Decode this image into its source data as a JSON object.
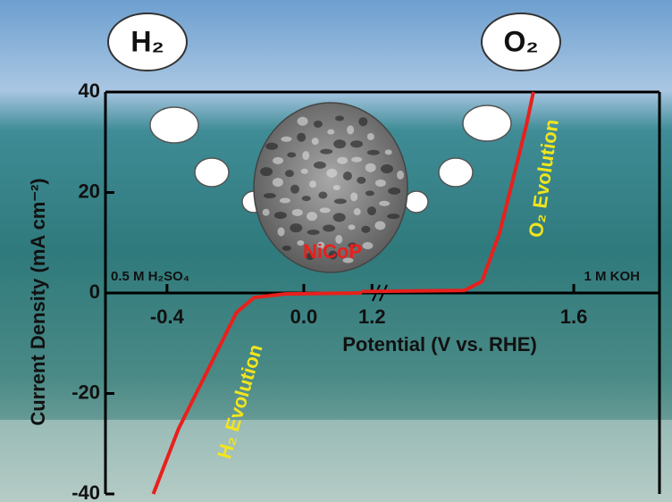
{
  "chart_data": [
    {
      "type": "line",
      "x_label": "Potential (V vs. RHE)",
      "y_label": "Current Density (mA cm⁻²)",
      "electrolyte": "0.5 M H₂SO₄",
      "product": "H₂",
      "annotation": "H₂ Evolution",
      "xlim": [
        -0.58,
        0.17
      ],
      "xticks": [
        -0.4,
        {
          "value": 0,
          "label": "0.0"
        }
      ],
      "ylim": [
        -40,
        40
      ],
      "yticks": [
        40,
        20,
        0,
        -20,
        -40
      ],
      "series": [
        {
          "color": "#e8201c",
          "x": [
            -0.44,
            -0.366,
            -0.262,
            -0.197,
            -0.145,
            -0.055,
            0.17
          ],
          "values": [
            -40,
            -27,
            -12.8,
            -3.9,
            -0.9,
            -0.2,
            0
          ]
        }
      ]
    },
    {
      "type": "line",
      "electrolyte": "1 M KOH",
      "product": "O₂",
      "annotation": "O₂ Evolution",
      "catalyst": "NiCoP",
      "xlim": [
        1.18,
        1.77
      ],
      "xticks": [
        1.2,
        1.6
      ],
      "ylim": [
        -40,
        40
      ],
      "series": [
        {
          "color": "#e8201c",
          "x": [
            1.18,
            1.383,
            1.418,
            1.453,
            1.48,
            1.506,
            1.52
          ],
          "values": [
            0.3,
            0.5,
            2.3,
            12,
            22.8,
            33.4,
            40
          ]
        }
      ]
    }
  ]
}
